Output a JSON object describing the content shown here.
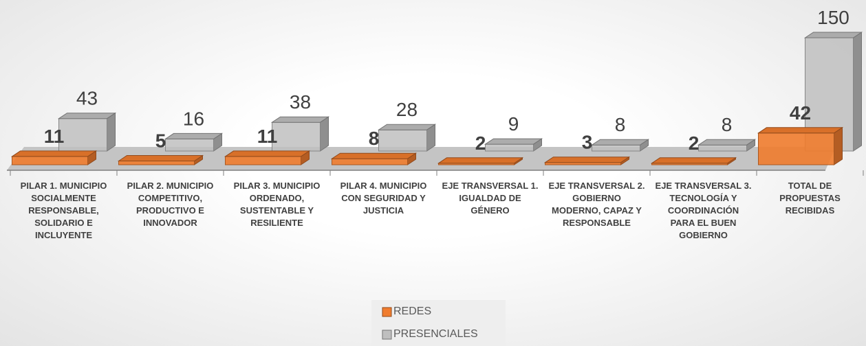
{
  "chart_data": {
    "type": "bar3d",
    "categories": [
      "PILAR 1. MUNICIPIO SOCIALMENTE RESPONSABLE, SOLIDARIO E INCLUYENTE",
      "PILAR 2. MUNICIPIO COMPETITIVO, PRODUCTIVO E INNOVADOR",
      "PILAR 3. MUNICIPIO ORDENADO, SUSTENTABLE Y RESILIENTE",
      "PILAR 4. MUNICIPIO CON SEGURIDAD Y JUSTICIA",
      "EJE TRANSVERSAL 1. IGUALDAD DE GÉNERO",
      "EJE TRANSVERSAL 2. GOBIERNO MODERNO, CAPAZ Y RESPONSABLE",
      "EJE TRANSVERSAL 3. TECNOLOGÍA Y COORDINACIÓN PARA EL BUEN GOBIERNO",
      "TOTAL DE PROPUESTAS RECIBIDAS"
    ],
    "series": [
      {
        "name": "REDES",
        "color": "#f07c2e",
        "values": [
          11,
          5,
          11,
          8,
          2,
          3,
          2,
          42
        ]
      },
      {
        "name": "PRESENCIALES",
        "color": "#bfbfbf",
        "values": [
          43,
          16,
          38,
          28,
          9,
          8,
          8,
          150
        ]
      }
    ],
    "legend": "bottom"
  }
}
